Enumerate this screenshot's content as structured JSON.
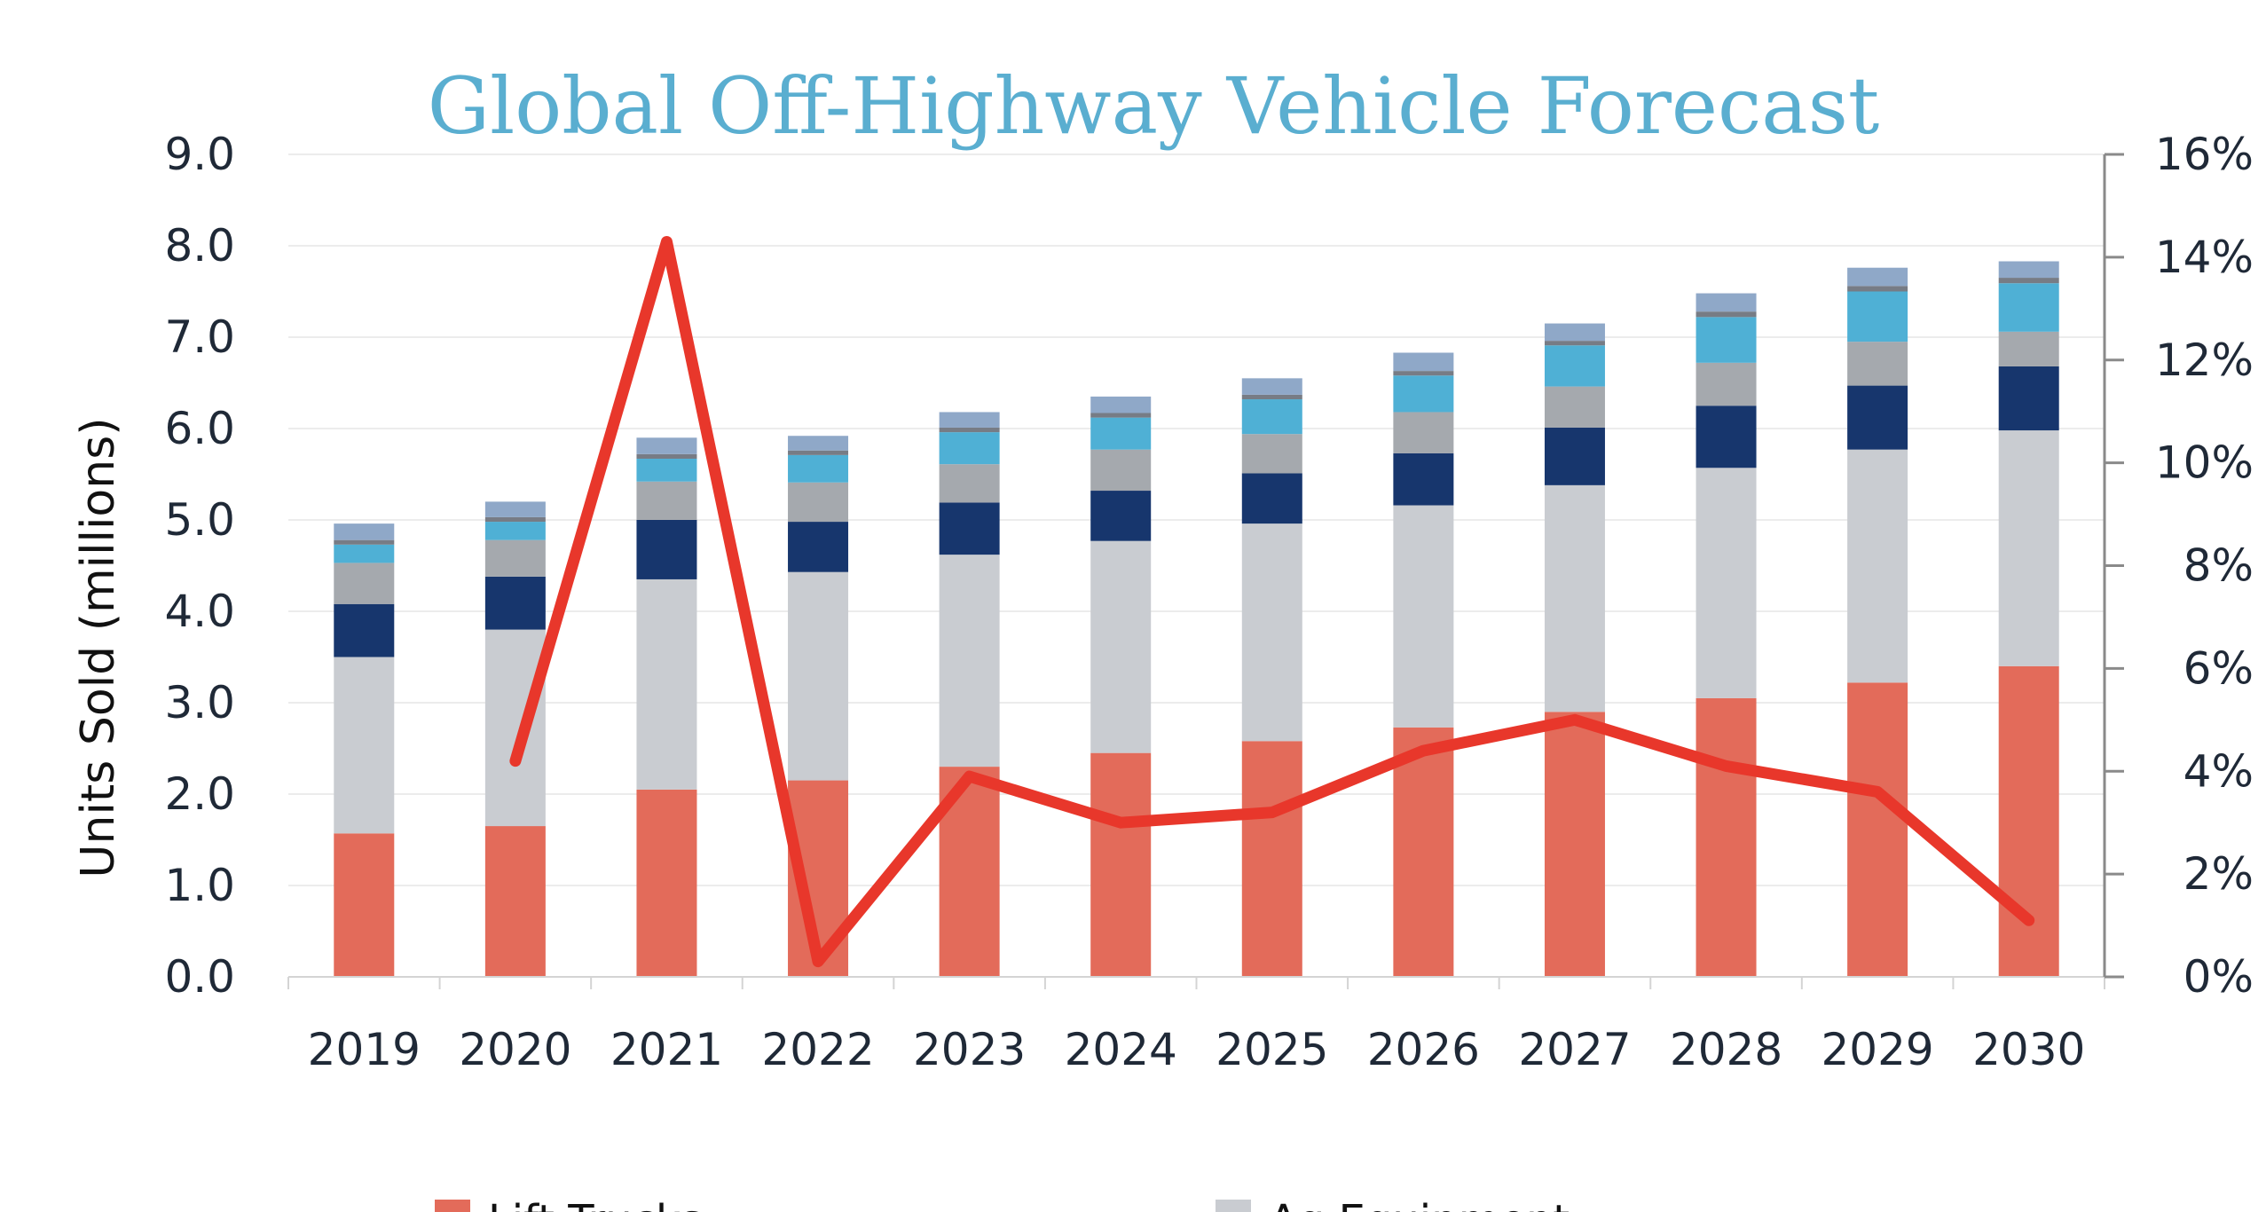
{
  "chart_data": {
    "type": "bar",
    "stacked": true,
    "title": "Global Off-Highway Vehicle Forecast",
    "xlabel": "",
    "ylabel": "Units Sold (millions)",
    "ylim": [
      0,
      9
    ],
    "y_ticks": [
      "0.0",
      "1.0",
      "2.0",
      "3.0",
      "4.0",
      "5.0",
      "6.0",
      "7.0",
      "8.0",
      "9.0"
    ],
    "y2lim": [
      0,
      16
    ],
    "y2_ticks": [
      "0%",
      "2%",
      "4%",
      "6%",
      "8%",
      "10%",
      "12%",
      "14%",
      "16%"
    ],
    "grid": true,
    "categories": [
      "2019",
      "2020",
      "2021",
      "2022",
      "2023",
      "2024",
      "2025",
      "2026",
      "2027",
      "2028",
      "2029",
      "2030"
    ],
    "series": [
      {
        "name": "",
        "color": "#e36b5a",
        "values": [
          1.57,
          1.65,
          2.05,
          2.15,
          2.3,
          2.45,
          2.58,
          2.73,
          2.9,
          3.05,
          3.22,
          3.4
        ]
      },
      {
        "name": "",
        "color": "#c9ccd1",
        "values": [
          1.93,
          2.15,
          2.3,
          2.28,
          2.32,
          2.32,
          2.38,
          2.43,
          2.48,
          2.52,
          2.55,
          2.58
        ]
      },
      {
        "name": "",
        "color": "#17366d",
        "values": [
          0.58,
          0.58,
          0.65,
          0.55,
          0.57,
          0.55,
          0.55,
          0.57,
          0.63,
          0.68,
          0.7,
          0.7
        ]
      },
      {
        "name": "",
        "color": "#a5a9ae",
        "values": [
          0.45,
          0.4,
          0.42,
          0.43,
          0.42,
          0.45,
          0.43,
          0.45,
          0.45,
          0.47,
          0.48,
          0.38
        ]
      },
      {
        "name": "",
        "color": "#4fb0d5",
        "values": [
          0.2,
          0.2,
          0.25,
          0.3,
          0.35,
          0.35,
          0.38,
          0.4,
          0.45,
          0.5,
          0.55,
          0.53
        ]
      },
      {
        "name": "",
        "color": "#777c85",
        "values": [
          0.05,
          0.05,
          0.05,
          0.05,
          0.05,
          0.05,
          0.05,
          0.05,
          0.05,
          0.06,
          0.06,
          0.06
        ]
      },
      {
        "name": "",
        "color": "#8fa8c8",
        "values": [
          0.18,
          0.17,
          0.18,
          0.16,
          0.17,
          0.18,
          0.18,
          0.2,
          0.19,
          0.2,
          0.2,
          0.18
        ]
      }
    ],
    "line_series": {
      "name": "",
      "color": "#e8372b",
      "axis": "right",
      "values": [
        null,
        4.2,
        14.3,
        0.3,
        3.9,
        3.0,
        3.2,
        4.4,
        5.0,
        4.1,
        3.6,
        1.1
      ]
    },
    "legend": {
      "placement": "bottom",
      "items": [
        {
          "label": "Lift Trucks",
          "color": "#e36b5a"
        },
        {
          "label": "Ag Equipment",
          "color": "#c9ccd1"
        }
      ]
    }
  }
}
